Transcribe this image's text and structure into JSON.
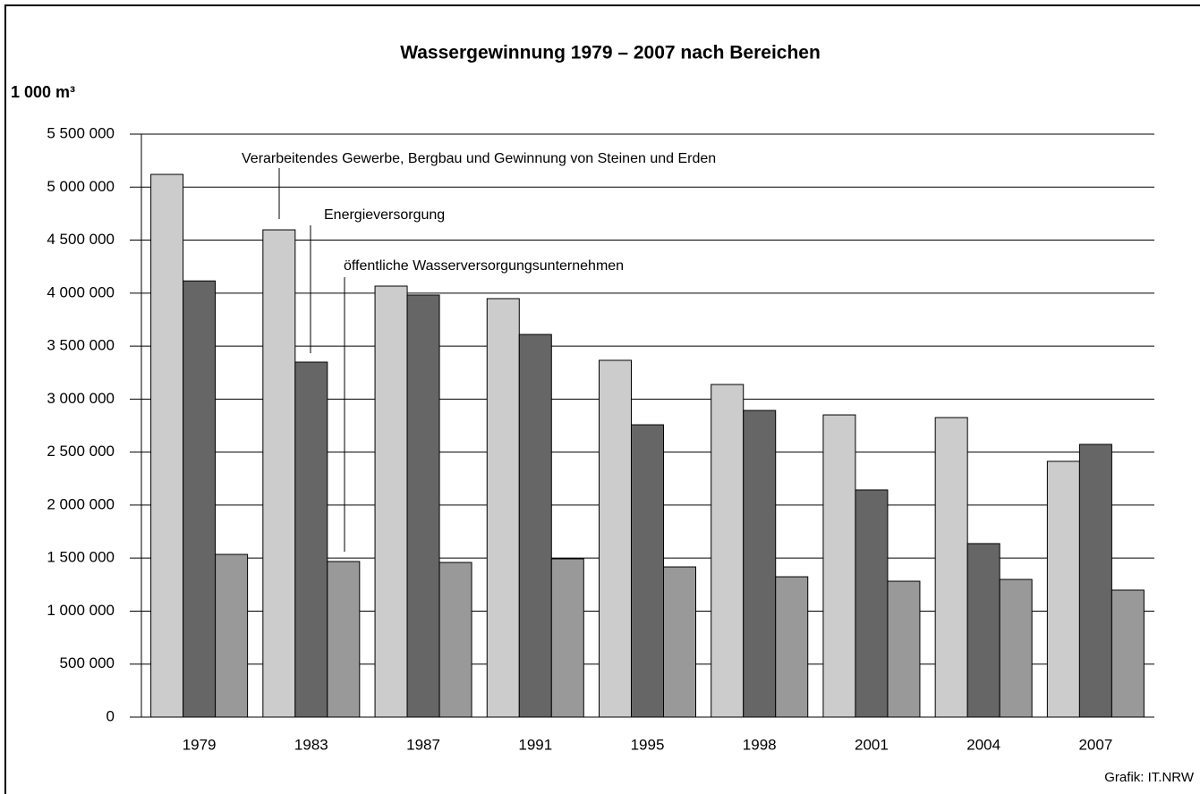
{
  "chart_data": {
    "type": "bar",
    "title": "Wassergewinnung 1979 – 2007 nach Bereichen",
    "y_label": "1 000 m³",
    "source": "Grafik: IT.NRW",
    "categories": [
      "1979",
      "1983",
      "1987",
      "1991",
      "1995",
      "1998",
      "2001",
      "2004",
      "2007"
    ],
    "series": [
      {
        "name": "Verarbeitendes Gewerbe, Bergbau und Gewinnung von Steinen und Erden",
        "color": "#cccccc",
        "values": [
          5120000,
          4597000,
          4066000,
          3948000,
          3366000,
          3138000,
          2851000,
          2826000,
          2413000
        ]
      },
      {
        "name": "Energieversorgung",
        "color": "#666666",
        "values": [
          4115000,
          3349000,
          3982000,
          3610000,
          2758000,
          2893000,
          2143000,
          1637000,
          2573000
        ]
      },
      {
        "name": "öffentliche Wasserversorgungsunternehmen",
        "color": "#999999",
        "values": [
          1535000,
          1468000,
          1459000,
          1493000,
          1417000,
          1324000,
          1282000,
          1299000,
          1198000
        ]
      }
    ],
    "ylim": [
      0,
      5500000
    ],
    "yticks": [
      0,
      {
        "value": 500000,
        "label": "500 000"
      },
      {
        "value": 1000000,
        "label": "1 000 000"
      },
      {
        "value": 1500000,
        "label": "1 500 000"
      },
      {
        "value": 2000000,
        "label": "2 000 000"
      },
      {
        "value": 2500000,
        "label": "2 500 000"
      },
      {
        "value": 3000000,
        "label": "3 000 000"
      },
      {
        "value": 3500000,
        "label": "3 500 000"
      },
      {
        "value": 4000000,
        "label": "4 000 000"
      },
      {
        "value": 4500000,
        "label": "4 500 000"
      },
      {
        "value": 5000000,
        "label": "5 000 000"
      },
      {
        "value": 5500000,
        "label": "5 500 000"
      }
    ],
    "grid": true
  }
}
